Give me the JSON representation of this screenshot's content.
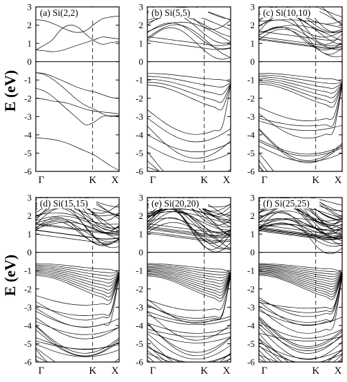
{
  "figure": {
    "ylabel_top": "E (eV)",
    "ylabel_bottom": "E (eV)"
  },
  "chart_data": [
    {
      "type": "line",
      "title": "(a) Si(2,2)",
      "ylabel": "E (eV)",
      "x_ticks": [
        "Γ",
        "K",
        "X"
      ],
      "y_ticks": [
        -6,
        -5,
        -4,
        -3,
        -2,
        -1,
        0,
        1,
        2,
        3
      ],
      "ylim": [
        -6,
        3
      ],
      "fermi_level": 0,
      "band_count": 8,
      "series": [
        {
          "values": [
            0.65,
            0.9,
            1.2,
            1.75,
            2.0,
            1.9,
            1.5,
            1.15,
            0.95,
            1.05,
            1.1
          ]
        },
        {
          "values": [
            0.65,
            0.6,
            0.55,
            0.6,
            0.75,
            0.9,
            1.05,
            1.2,
            1.35,
            1.3,
            1.25
          ]
        },
        {
          "values": [
            2.3,
            2.25,
            2.1,
            1.9,
            1.7,
            1.6,
            1.7,
            2.05,
            2.35,
            2.45,
            2.5
          ]
        },
        {
          "values": [
            -0.6,
            -0.7,
            -0.95,
            -1.3,
            -1.7,
            -2.1,
            -2.4,
            -2.6,
            -2.85,
            -3.0,
            -2.95
          ]
        },
        {
          "values": [
            -0.6,
            -0.65,
            -0.8,
            -1.0,
            -1.2,
            -1.4,
            -1.55,
            -1.65,
            -1.8,
            -1.95,
            -2.0
          ]
        },
        {
          "values": [
            -1.45,
            -1.6,
            -1.9,
            -2.3,
            -2.7,
            -3.1,
            -3.45,
            -3.3,
            -3.0,
            -2.95,
            -2.95
          ]
        },
        {
          "values": [
            -2.0,
            -2.05,
            -2.15,
            -2.2,
            -2.3,
            -2.45,
            -2.6,
            -2.7,
            -2.75,
            -2.8,
            -2.85
          ]
        },
        {
          "values": [
            -4.15,
            -4.2,
            -4.25,
            -4.35,
            -4.5,
            -4.7,
            -4.9,
            -5.1,
            -5.4,
            -5.7,
            -5.95
          ]
        }
      ]
    },
    {
      "type": "line",
      "title": "(b) Si(5,5)",
      "x_ticks": [
        "Γ",
        "K",
        "X"
      ],
      "y_ticks": [
        -6,
        -5,
        -4,
        -3,
        -2,
        -1,
        0,
        1,
        2,
        3
      ],
      "ylim": [
        -6,
        3
      ],
      "fermi_level": 0,
      "band_count": 25
    },
    {
      "type": "line",
      "title": "(c) Si(10,10)",
      "x_ticks": [
        "Γ",
        "K",
        "X"
      ],
      "y_ticks": [
        -6,
        -5,
        -4,
        -3,
        -2,
        -1,
        0,
        1,
        2,
        3
      ],
      "ylim": [
        -6,
        3
      ],
      "fermi_level": 0,
      "band_count": 40
    },
    {
      "type": "line",
      "title": "(d) Si(15,15)",
      "ylabel": "E (eV)",
      "x_ticks": [
        "Γ",
        "K",
        "X"
      ],
      "y_ticks": [
        -6,
        -5,
        -4,
        -3,
        -2,
        -1,
        0,
        1,
        2,
        3
      ],
      "ylim": [
        -6,
        3
      ],
      "fermi_level": 0,
      "band_count": 55
    },
    {
      "type": "line",
      "title": "(e) Si(20,20)",
      "x_ticks": [
        "Γ",
        "K",
        "X"
      ],
      "y_ticks": [
        -6,
        -5,
        -4,
        -3,
        -2,
        -1,
        0,
        1,
        2,
        3
      ],
      "ylim": [
        -6,
        3
      ],
      "fermi_level": 0,
      "band_count": 65
    },
    {
      "type": "line",
      "title": "(f) Si(25,25)",
      "x_ticks": [
        "Γ",
        "K",
        "X"
      ],
      "y_ticks": [
        -6,
        -5,
        -4,
        -3,
        -2,
        -1,
        0,
        1,
        2,
        3
      ],
      "ylim": [
        -6,
        3
      ],
      "fermi_level": 0,
      "band_count": 75
    }
  ]
}
